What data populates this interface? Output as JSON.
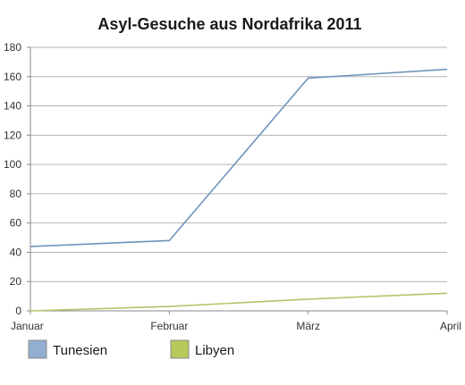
{
  "chart_data": {
    "type": "line",
    "title": "Asyl-Gesuche aus Nordafrika 2011",
    "categories": [
      "Januar",
      "Februar",
      "März",
      "April"
    ],
    "ylim": [
      0,
      180
    ],
    "yticks": [
      0,
      20,
      40,
      60,
      80,
      100,
      120,
      140,
      160,
      180
    ],
    "grid": true,
    "legend_position": "bottom-left",
    "series": [
      {
        "name": "Tunesien",
        "values": [
          44,
          48,
          159,
          165
        ],
        "color": "#6f93bd",
        "legend_fill": "#93aed0"
      },
      {
        "name": "Libyen",
        "values": [
          0,
          3,
          8,
          12
        ],
        "color": "#b4c56a",
        "legend_fill": "#b7c95a"
      }
    ]
  }
}
